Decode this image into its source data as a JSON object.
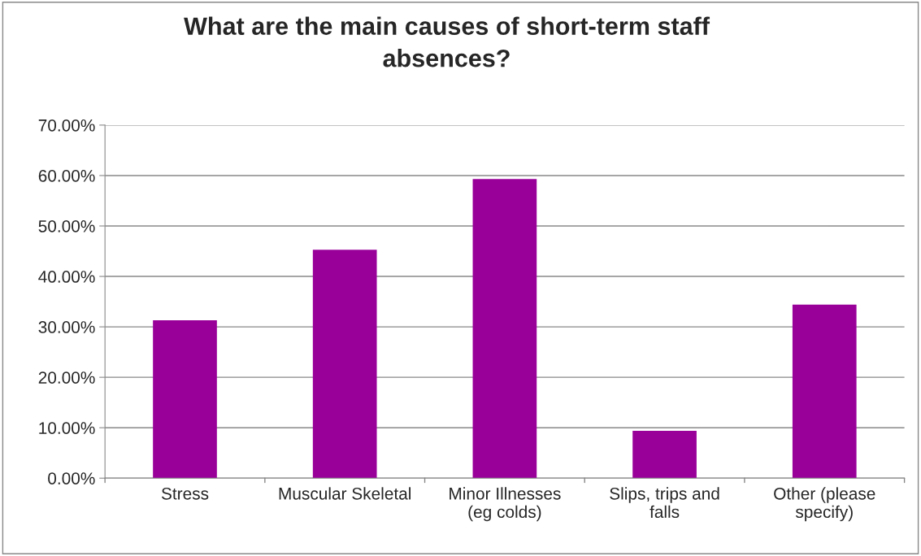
{
  "chart_data": {
    "type": "bar",
    "title": "What are the main causes of short-term staff\nabsences?",
    "categories": [
      "Stress",
      "Muscular Skeletal",
      "Minor Illnesses\n(eg colds)",
      "Slips, trips and\nfalls",
      "Other (please\nspecify)"
    ],
    "values": [
      31.3,
      45.3,
      59.3,
      9.4,
      34.4
    ],
    "color": "#990099",
    "ylim": [
      0,
      70
    ],
    "yticks": [
      {
        "value": 0,
        "label": "0.00%"
      },
      {
        "value": 10,
        "label": "10.00%"
      },
      {
        "value": 20,
        "label": "20.00%"
      },
      {
        "value": 30,
        "label": "30.00%"
      },
      {
        "value": 40,
        "label": "40.00%"
      },
      {
        "value": 50,
        "label": "50.00%"
      },
      {
        "value": 60,
        "label": "60.00%"
      },
      {
        "value": 70,
        "label": "70.00%"
      }
    ],
    "grid": "y"
  }
}
